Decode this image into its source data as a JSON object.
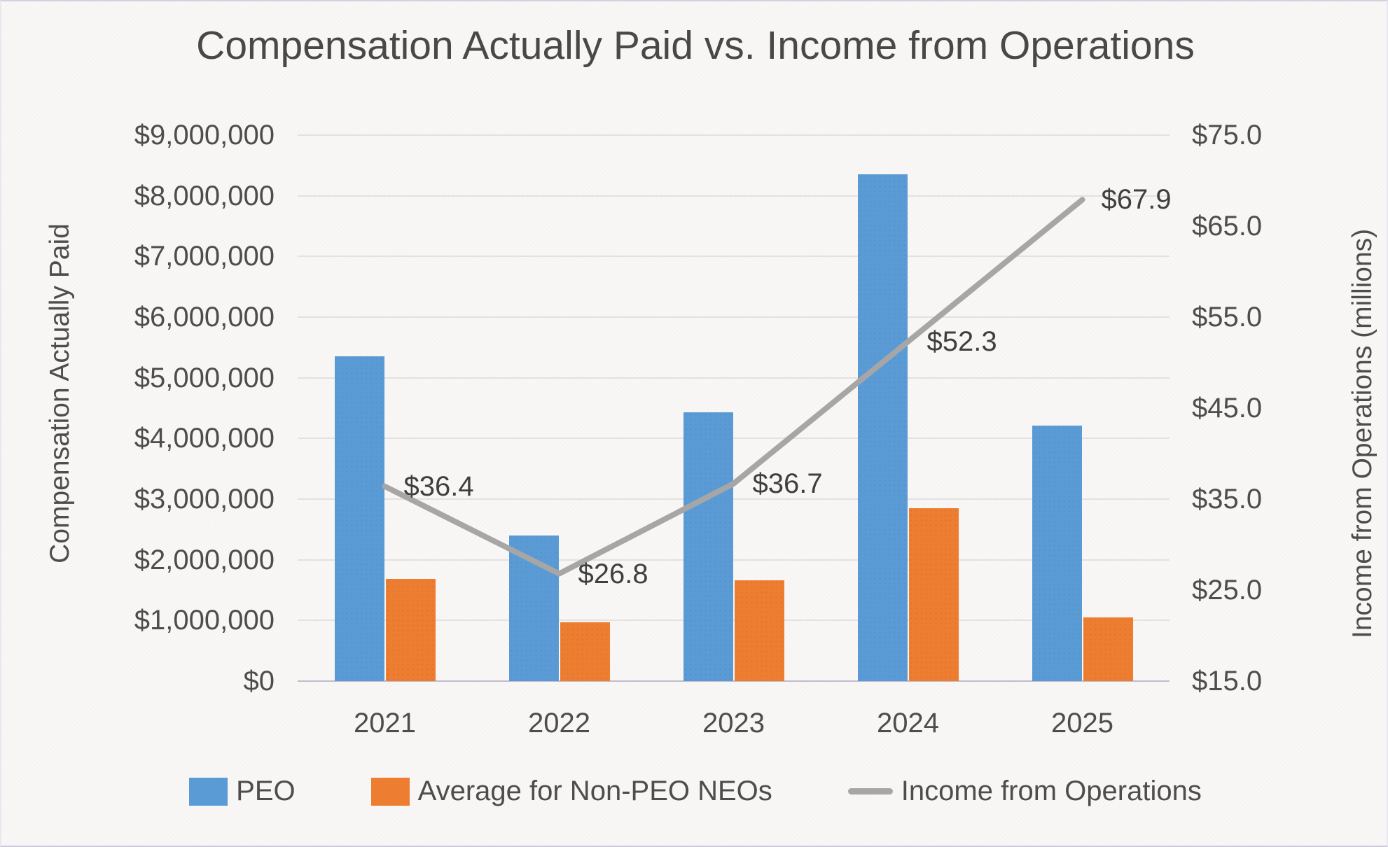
{
  "colors": {
    "peo_bar": "#5b9bd5",
    "neo_bar": "#ed7d31",
    "line": "#a6a6a6",
    "text": "#4d4d4d",
    "grid": "#e5e0e2",
    "baseline": "#c1bbcd"
  },
  "chart_data": {
    "type": "bar+line combo",
    "title": "Compensation Actually Paid vs. Income from Operations",
    "categories": [
      "2021",
      "2022",
      "2023",
      "2024",
      "2025"
    ],
    "series": [
      {
        "name": "PEO",
        "type": "bar",
        "axis": "left",
        "values": [
          5350000,
          2400000,
          4430000,
          8350000,
          4210000
        ]
      },
      {
        "name": "Average for Non-PEO NEOs",
        "type": "bar",
        "axis": "left",
        "values": [
          1690000,
          970000,
          1660000,
          2850000,
          1050000
        ]
      },
      {
        "name": "Income from Operations",
        "type": "line",
        "axis": "right",
        "values": [
          36.4,
          26.8,
          36.7,
          52.3,
          67.9
        ],
        "point_labels": [
          "$36.4",
          "$26.8",
          "$36.7",
          "$52.3",
          "$67.9"
        ]
      }
    ],
    "left_axis": {
      "title": "Compensation Actually Paid",
      "min": 0,
      "max": 9000000,
      "step": 1000000,
      "tick_labels": [
        "$0",
        "$1,000,000",
        "$2,000,000",
        "$3,000,000",
        "$4,000,000",
        "$5,000,000",
        "$6,000,000",
        "$7,000,000",
        "$8,000,000",
        "$9,000,000"
      ]
    },
    "right_axis": {
      "title": "Income from Operations (millions)",
      "min": 15,
      "max": 75,
      "step": 10,
      "tick_labels": [
        "$15.0",
        "$25.0",
        "$35.0",
        "$45.0",
        "$55.0",
        "$65.0",
        "$75.0"
      ]
    },
    "legend": [
      {
        "swatch": "peo",
        "label": "PEO"
      },
      {
        "swatch": "neo",
        "label": "Average for Non-PEO NEOs"
      },
      {
        "swatch": "line",
        "label": "Income from Operations"
      }
    ],
    "grid": "horizontal-only",
    "legend_position": "bottom"
  }
}
